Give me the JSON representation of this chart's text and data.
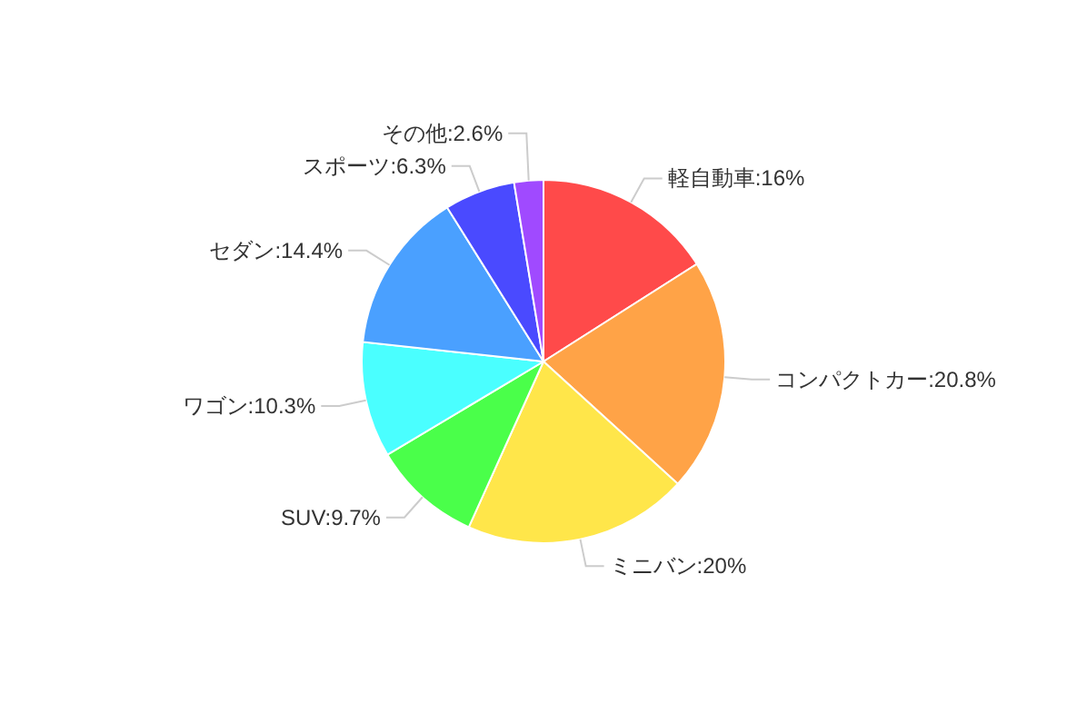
{
  "chart_data": {
    "type": "pie",
    "categories": [
      "軽自動車",
      "コンパクトカー",
      "ミニバン",
      "SUV",
      "ワゴン",
      "セダン",
      "スポーツ",
      "その他"
    ],
    "values": [
      16,
      20.8,
      20,
      9.7,
      10.3,
      14.4,
      6.3,
      2.6
    ],
    "value_labels": [
      "16%",
      "20.8%",
      "20%",
      "9.7%",
      "10.3%",
      "14.4%",
      "6.3%",
      "2.6%"
    ],
    "colors": [
      "#ff4a4a",
      "#ffa347",
      "#ffe64a",
      "#4aff4a",
      "#4affff",
      "#4aa0ff",
      "#4a4aff",
      "#a04aff"
    ]
  }
}
